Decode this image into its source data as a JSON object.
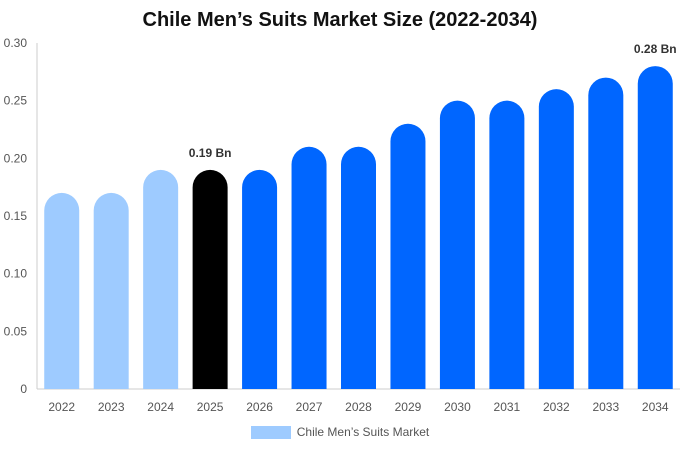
{
  "chart_data": {
    "type": "bar",
    "title": "Chile Men’s Suits Market Size (2022-2034)",
    "xlabel": "",
    "ylabel": "",
    "categories": [
      "2022",
      "2023",
      "2024",
      "2025",
      "2026",
      "2027",
      "2028",
      "2029",
      "2030",
      "2031",
      "2032",
      "2033",
      "2034"
    ],
    "series": [
      {
        "name": "Chile Men’s Suits Market",
        "values": [
          0.17,
          0.17,
          0.19,
          0.19,
          0.19,
          0.21,
          0.21,
          0.23,
          0.25,
          0.25,
          0.26,
          0.27,
          0.28
        ]
      }
    ],
    "bar_colors": [
      "#9ecbff",
      "#9ecbff",
      "#9ecbff",
      "#000000",
      "#0066ff",
      "#0066ff",
      "#0066ff",
      "#0066ff",
      "#0066ff",
      "#0066ff",
      "#0066ff",
      "#0066ff",
      "#0066ff"
    ],
    "data_labels": {
      "2025": "0.19 Bn",
      "2034": "0.28 Bn"
    },
    "ylim": [
      0,
      0.3
    ],
    "yticks": [
      "0",
      "0.05",
      "0.10",
      "0.15",
      "0.20",
      "0.25",
      "0.30"
    ],
    "grid": false,
    "legend": {
      "position": "bottom",
      "label": "Chile Men’s Suits Market",
      "color": "#9ecbff"
    }
  }
}
